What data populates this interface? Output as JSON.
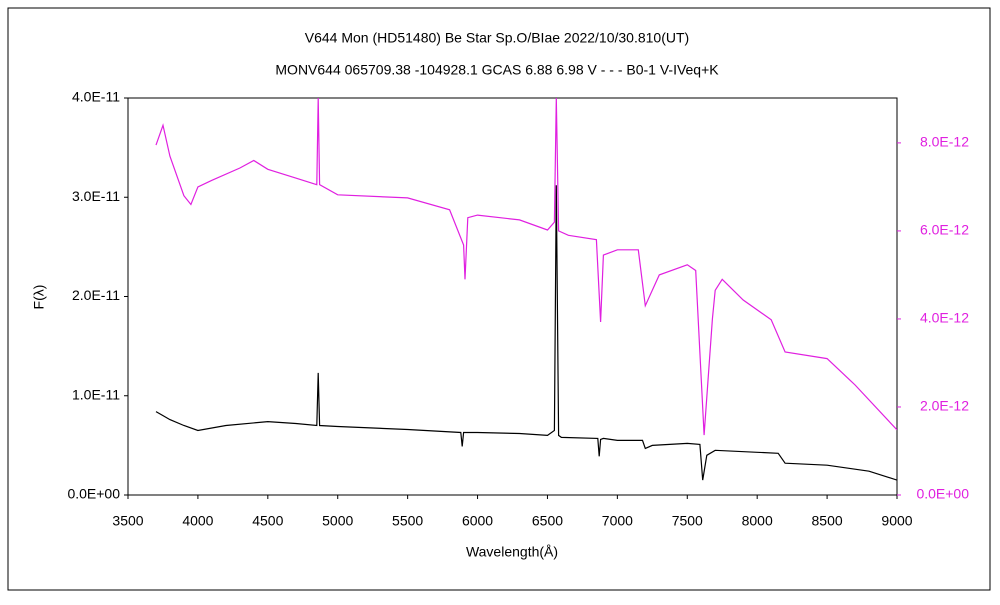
{
  "chart_data": {
    "type": "line",
    "title": "V644 Mon (HD51480)    Be Star    Sp.O/BIae    2022/10/30.810(UT)",
    "subtitle": "MONV644 065709.38 -104928.1 GCAS 6.88 6.98 V - - - B0-1 V-IVeq+K",
    "xlabel": "Wavelength(Å)",
    "ylabel": "F(λ)",
    "xlim": [
      3500,
      9000
    ],
    "xticks": [
      3500,
      4000,
      4500,
      5000,
      5500,
      6000,
      6500,
      7000,
      7500,
      8000,
      8500,
      9000
    ],
    "ylim": [
      0,
      4e-11
    ],
    "yticks": [
      {
        "value": 0,
        "label": "0.0E+00"
      },
      {
        "value": 1e-11,
        "label": "1.0E-11"
      },
      {
        "value": 2e-11,
        "label": "2.0E-11"
      },
      {
        "value": 3e-11,
        "label": "3.0E-11"
      },
      {
        "value": 4e-11,
        "label": "4.0E-11"
      }
    ],
    "y2lim": [
      0,
      9.02e-12
    ],
    "y2ticks": [
      {
        "value": 0,
        "label": "0.0E+00"
      },
      {
        "value": 2e-12,
        "label": "2.0E-12"
      },
      {
        "value": 4e-12,
        "label": "4.0E-12"
      },
      {
        "value": 6e-12,
        "label": "6.0E-12"
      },
      {
        "value": 8e-12,
        "label": "8.0E-12"
      }
    ],
    "series": [
      {
        "color": "#000000",
        "x": [
          3700,
          3750,
          3800,
          3900,
          4000,
          4200,
          4500,
          4700,
          4850,
          4860,
          4870,
          5000,
          5500,
          5880,
          5890,
          5900,
          6000,
          6300,
          6500,
          6550,
          6563,
          6580,
          6600,
          6860,
          6870,
          6880,
          6900,
          7000,
          7180,
          7200,
          7250,
          7500,
          7590,
          7610,
          7640,
          7700,
          8000,
          8150,
          8200,
          8500,
          8800,
          9000
        ],
        "values": [
          8.4e-12,
          8e-12,
          7.6e-12,
          7e-12,
          6.5e-12,
          7e-12,
          7.4e-12,
          7.2e-12,
          7e-12,
          1.23e-11,
          7e-12,
          6.9e-12,
          6.6e-12,
          6.3e-12,
          4.9e-12,
          6.3e-12,
          6.3e-12,
          6.2e-12,
          6e-12,
          6.5e-12,
          3.12e-11,
          6e-12,
          5.8e-12,
          5.7e-12,
          3.9e-12,
          5.6e-12,
          5.7e-12,
          5.5e-12,
          5.5e-12,
          4.7e-12,
          5e-12,
          5.2e-12,
          5.1e-12,
          1.5e-12,
          4e-12,
          4.5e-12,
          4.3e-12,
          4.2e-12,
          3.2e-12,
          3e-12,
          2.4e-12,
          1.5e-12
        ]
      },
      {
        "color": "#e020e0",
        "axis": "y2",
        "x": [
          3700,
          3750,
          3800,
          3900,
          3950,
          4000,
          4100,
          4300,
          4400,
          4500,
          4700,
          4850,
          4860,
          4870,
          5000,
          5500,
          5800,
          5900,
          5910,
          5930,
          6000,
          6300,
          6500,
          6550,
          6563,
          6580,
          6650,
          6850,
          6880,
          6900,
          7000,
          7150,
          7200,
          7250,
          7300,
          7500,
          7560,
          7620,
          7680,
          7700,
          7750,
          7900,
          8100,
          8200,
          8500,
          8700,
          9000
        ],
        "values": [
          7.95e-12,
          8.4e-12,
          7.7e-12,
          6.8e-12,
          6.6e-12,
          7e-12,
          7.15e-12,
          7.43e-12,
          7.6e-12,
          7.4e-12,
          7.2e-12,
          7.05e-12,
          9.02e-12,
          7.05e-12,
          6.82e-12,
          6.75e-12,
          6.48e-12,
          5.68e-12,
          4.9e-12,
          6.3e-12,
          6.36e-12,
          6.25e-12,
          6.02e-12,
          6.2e-12,
          9.02e-12,
          6e-12,
          5.9e-12,
          5.8e-12,
          3.93e-12,
          5.45e-12,
          5.57e-12,
          5.57e-12,
          4.3e-12,
          4.65e-12,
          5e-12,
          5.23e-12,
          5.1e-12,
          1.36e-12,
          4e-12,
          4.65e-12,
          4.9e-12,
          4.43e-12,
          3.98e-12,
          3.25e-12,
          3.1e-12,
          2.5e-12,
          1.48e-12
        ]
      }
    ]
  }
}
